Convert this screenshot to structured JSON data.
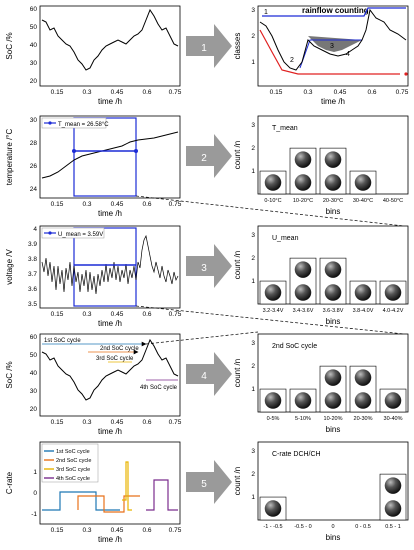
{
  "left_panels": [
    {
      "ylabel": "SoC /%",
      "xlabel": "time /h",
      "xticks": [
        "0.15",
        "0.3",
        "0.45",
        "0.6",
        "0.75"
      ],
      "yticks": [
        "60",
        "50",
        "40",
        "30",
        "20"
      ],
      "legend": ""
    },
    {
      "ylabel": "temperature /°C",
      "xlabel": "time /h",
      "xticks": [
        "0.15",
        "0.3",
        "0.45",
        "0.6",
        "0.75"
      ],
      "yticks": [
        "30",
        "28",
        "26",
        "24"
      ],
      "legend": "T_mean = 26.58°C"
    },
    {
      "ylabel": "voltage /V",
      "xlabel": "time /h",
      "xticks": [
        "0.15",
        "0.3",
        "0.45",
        "0.6",
        "0.75"
      ],
      "yticks": [
        "4",
        "3.9",
        "3.8",
        "3.7",
        "3.6",
        "3.5"
      ],
      "legend": "U_mean = 3.59V"
    },
    {
      "ylabel": "SoC /%",
      "xlabel": "time /h",
      "xticks": [
        "0.15",
        "0.3",
        "0.45",
        "0.6",
        "0.75"
      ],
      "yticks": [
        "60",
        "50",
        "40",
        "30",
        "20"
      ],
      "annotations": [
        "1st SoC cycle",
        "2nd SoC cycle",
        "3rd SoC cycle",
        "4th SoC cycle"
      ]
    },
    {
      "ylabel": "C-rate",
      "xlabel": "time /h",
      "xticks": [
        "0.15",
        "0.3",
        "0.45",
        "0.6",
        "0.75"
      ],
      "yticks": [
        "1",
        "0",
        "-1"
      ],
      "legend_items": [
        "1st SoC cycle",
        "2nd SoC cycle",
        "3rd SoC cycle",
        "4th SoC cycle"
      ],
      "legend_colors": [
        "#1f77b4",
        "#e8711a",
        "#e8b400",
        "#7b2d8e"
      ]
    }
  ],
  "steps": [
    "1",
    "2",
    "3",
    "4",
    "5"
  ],
  "right_panels": [
    {
      "title": "rainflow counting",
      "ylabel": "classes",
      "xlabel": "time /h",
      "xticks": [
        "0.15",
        "0.3",
        "0.45",
        "0.6",
        "0.75"
      ],
      "yticks": [
        "3",
        "2",
        "1"
      ],
      "labels": [
        "1",
        "2",
        "3",
        "4"
      ]
    },
    {
      "ylabel": "count /n",
      "xlabel": "bins",
      "bins": [
        "0-10°C",
        "10-20°C",
        "20-30°C",
        "30-40°C",
        "40-50°C"
      ],
      "counts": [
        1,
        2,
        2,
        1,
        0
      ],
      "yticks": [
        "3",
        "2",
        "1"
      ],
      "callout": "T_mean"
    },
    {
      "ylabel": "count /n",
      "xlabel": "bins",
      "bins": [
        "3.2-3.4V",
        "3.4-3.6V",
        "3.6-3.8V",
        "3.8-4.0V",
        "4.0-4.2V"
      ],
      "counts": [
        1,
        2,
        2,
        1,
        1
      ],
      "yticks": [
        "3",
        "2",
        "1"
      ],
      "callout": "U_mean"
    },
    {
      "ylabel": "count /n",
      "xlabel": "bins",
      "bins": [
        "0-5%",
        "5-10%",
        "10-20%",
        "20-30%",
        "30-40%"
      ],
      "counts": [
        1,
        1,
        2,
        2,
        1
      ],
      "yticks": [
        "3",
        "2",
        "1"
      ],
      "callout": "2nd SoC cycle"
    },
    {
      "ylabel": "count /n",
      "xlabel": "bins",
      "bins": [
        "-1 - -0.5",
        "-0.5 - 0",
        "0",
        "0 - 0.5",
        "0.5 - 1"
      ],
      "counts": [
        1,
        0,
        0,
        0,
        2
      ],
      "yticks": [
        "3",
        "2",
        "1"
      ],
      "callout": "C-rate DCH/CH"
    }
  ]
}
